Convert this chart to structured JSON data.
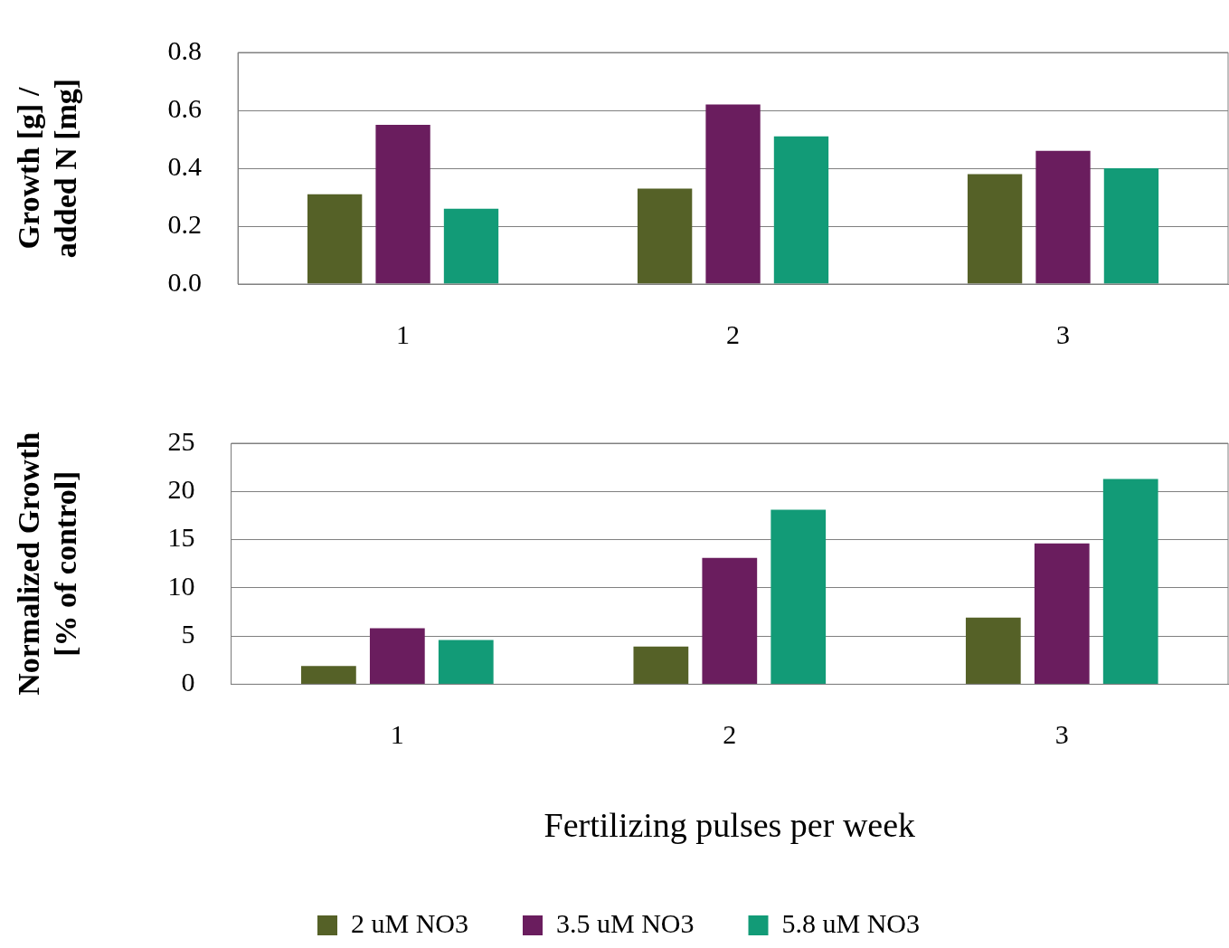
{
  "chart_data": [
    {
      "type": "bar",
      "ylabel": "Growth [g] /\nadded N [mg]",
      "categories": [
        "1",
        "2",
        "3"
      ],
      "series": [
        {
          "color": "#556127",
          "values": [
            0.31,
            0.33,
            0.38
          ]
        },
        {
          "color": "#6a1d5e",
          "values": [
            0.55,
            0.62,
            0.46
          ]
        },
        {
          "color": "#129b77",
          "values": [
            0.26,
            0.51,
            0.4
          ]
        }
      ],
      "ylim": [
        0,
        0.8
      ],
      "yticks": [
        {
          "value": 0,
          "label": "0.0"
        },
        0.2,
        0.4,
        0.6,
        0.8
      ],
      "grid": "y",
      "legend": false
    },
    {
      "type": "bar",
      "ylabel": "Normalized Growth\n[% of control]",
      "xlabel": "Fertilizing pulses per week",
      "categories": [
        "1",
        "2",
        "3"
      ],
      "series": [
        {
          "name": "2 uM NO3",
          "color": "#556127",
          "values": [
            1.9,
            3.9,
            6.9
          ]
        },
        {
          "name": "3.5 uM NO3",
          "color": "#6a1d5e",
          "values": [
            5.8,
            13.1,
            14.6
          ]
        },
        {
          "name": "5.8 uM NO3",
          "color": "#129b77",
          "values": [
            4.6,
            18.1,
            21.3
          ]
        }
      ],
      "ylim": [
        0,
        25
      ],
      "yticks": [
        0,
        5,
        10,
        15,
        20,
        25
      ],
      "grid": "y",
      "legend": "bottom"
    }
  ]
}
